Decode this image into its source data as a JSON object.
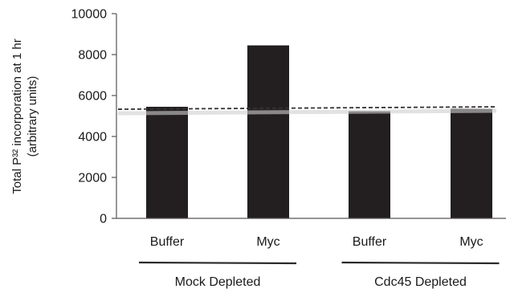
{
  "chart_data": {
    "type": "bar",
    "title": "",
    "ylabel_line1": "Total P³² incorporation at 1 hr",
    "ylabel_line2": "(arbitrary units)",
    "xlabel": "",
    "ylim": [
      0,
      10000
    ],
    "yticks": [
      0,
      2000,
      4000,
      6000,
      8000,
      10000
    ],
    "grid": false,
    "categories": [
      "Buffer",
      "Myc",
      "Buffer",
      "Myc"
    ],
    "values": [
      5450,
      8450,
      5230,
      5350
    ],
    "groups": [
      {
        "label": "Mock Depleted",
        "categories": [
          0,
          1
        ]
      },
      {
        "label": "Cdc45 Depleted",
        "categories": [
          2,
          3
        ]
      }
    ],
    "reference_line": {
      "style": "dashed",
      "y_start": 5330,
      "y_end": 5450
    },
    "colors": {
      "bar": "#231f20",
      "axis": "#555555",
      "reference": "#333333"
    }
  }
}
